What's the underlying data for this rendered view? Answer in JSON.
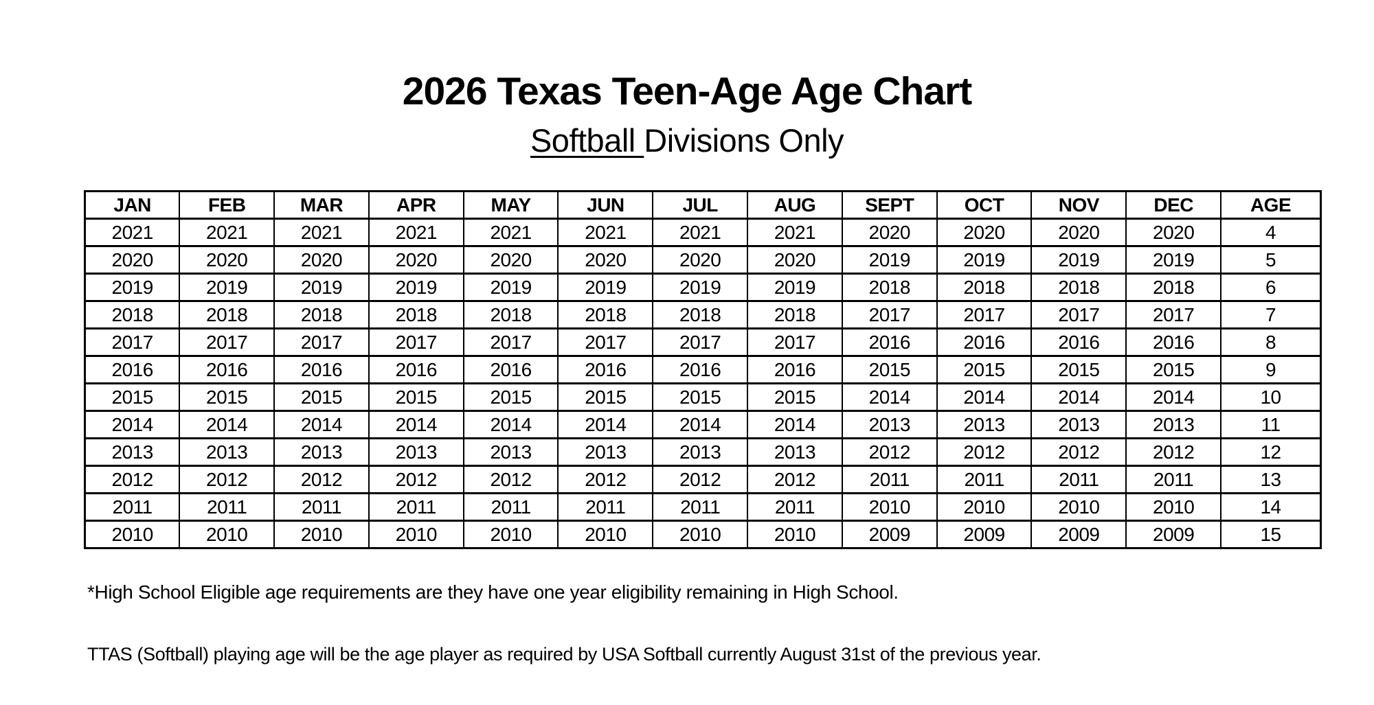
{
  "document": {
    "title": "2026 Texas Teen-Age Age Chart",
    "subtitle": {
      "underlined_part": "Softball ",
      "rest_part": "Divisions Only"
    }
  },
  "table": {
    "headers": [
      "JAN",
      "FEB",
      "MAR",
      "APR",
      "MAY",
      "JUN",
      "JUL",
      "AUG",
      "SEPT",
      "OCT",
      "NOV",
      "DEC",
      "AGE"
    ],
    "rows": [
      [
        "2021",
        "2021",
        "2021",
        "2021",
        "2021",
        "2021",
        "2021",
        "2021",
        "2020",
        "2020",
        "2020",
        "2020",
        "4"
      ],
      [
        "2020",
        "2020",
        "2020",
        "2020",
        "2020",
        "2020",
        "2020",
        "2020",
        "2019",
        "2019",
        "2019",
        "2019",
        "5"
      ],
      [
        "2019",
        "2019",
        "2019",
        "2019",
        "2019",
        "2019",
        "2019",
        "2019",
        "2018",
        "2018",
        "2018",
        "2018",
        "6"
      ],
      [
        "2018",
        "2018",
        "2018",
        "2018",
        "2018",
        "2018",
        "2018",
        "2018",
        "2017",
        "2017",
        "2017",
        "2017",
        "7"
      ],
      [
        "2017",
        "2017",
        "2017",
        "2017",
        "2017",
        "2017",
        "2017",
        "2017",
        "2016",
        "2016",
        "2016",
        "2016",
        "8"
      ],
      [
        "2016",
        "2016",
        "2016",
        "2016",
        "2016",
        "2016",
        "2016",
        "2016",
        "2015",
        "2015",
        "2015",
        "2015",
        "9"
      ],
      [
        "2015",
        "2015",
        "2015",
        "2015",
        "2015",
        "2015",
        "2015",
        "2015",
        "2014",
        "2014",
        "2014",
        "2014",
        "10"
      ],
      [
        "2014",
        "2014",
        "2014",
        "2014",
        "2014",
        "2014",
        "2014",
        "2014",
        "2013",
        "2013",
        "2013",
        "2013",
        "11"
      ],
      [
        "2013",
        "2013",
        "2013",
        "2013",
        "2013",
        "2013",
        "2013",
        "2013",
        "2012",
        "2012",
        "2012",
        "2012",
        "12"
      ],
      [
        "2012",
        "2012",
        "2012",
        "2012",
        "2012",
        "2012",
        "2012",
        "2012",
        "2011",
        "2011",
        "2011",
        "2011",
        "13"
      ],
      [
        "2011",
        "2011",
        "2011",
        "2011",
        "2011",
        "2011",
        "2011",
        "2011",
        "2010",
        "2010",
        "2010",
        "2010",
        "14"
      ],
      [
        "2010",
        "2010",
        "2010",
        "2010",
        "2010",
        "2010",
        "2010",
        "2010",
        "2009",
        "2009",
        "2009",
        "2009",
        "15"
      ]
    ]
  },
  "footnotes": {
    "high_school": "*High School Eligible age requirements are they have one year eligibility remaining in High School.",
    "ttas": "TTAS (Softball) playing age will be the age player as required by USA Softball currently August 31st of the previous year."
  },
  "colors": {
    "text": "#000000",
    "background": "#ffffff",
    "table_border": "#000000"
  }
}
